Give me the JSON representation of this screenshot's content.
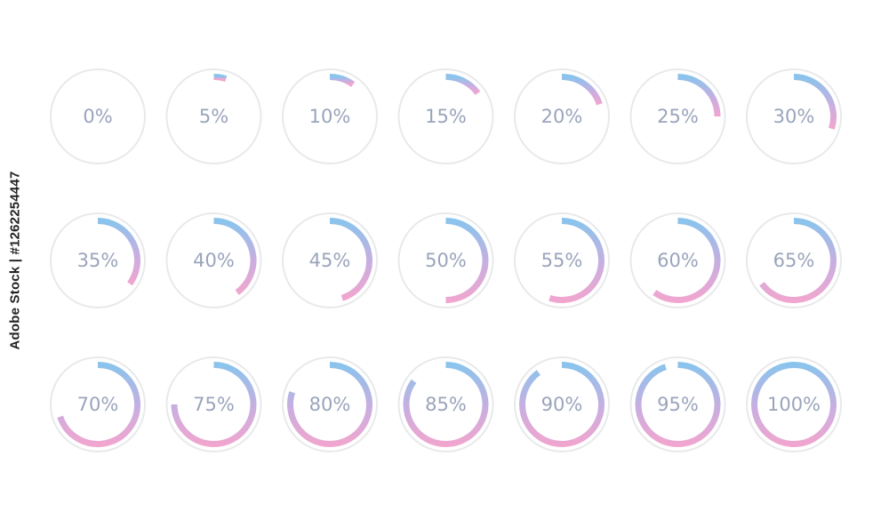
{
  "colors": {
    "track": "#e8e9ec",
    "gradient_start": "#8ac4ec",
    "gradient_mid": "#c9aee0",
    "gradient_end": "#f0a6cf",
    "label": "#9aa4bb"
  },
  "progress_rings": [
    {
      "label": "0%",
      "value": 0
    },
    {
      "label": "5%",
      "value": 5
    },
    {
      "label": "10%",
      "value": 10
    },
    {
      "label": "15%",
      "value": 15
    },
    {
      "label": "20%",
      "value": 20
    },
    {
      "label": "25%",
      "value": 25
    },
    {
      "label": "30%",
      "value": 30
    },
    {
      "label": "35%",
      "value": 35
    },
    {
      "label": "40%",
      "value": 40
    },
    {
      "label": "45%",
      "value": 45
    },
    {
      "label": "50%",
      "value": 50
    },
    {
      "label": "55%",
      "value": 55
    },
    {
      "label": "60%",
      "value": 60
    },
    {
      "label": "65%",
      "value": 65
    },
    {
      "label": "70%",
      "value": 70
    },
    {
      "label": "75%",
      "value": 75
    },
    {
      "label": "80%",
      "value": 80
    },
    {
      "label": "85%",
      "value": 85
    },
    {
      "label": "90%",
      "value": 90
    },
    {
      "label": "95%",
      "value": 95
    },
    {
      "label": "100%",
      "value": 100
    }
  ],
  "watermark": {
    "text": "Adobe Stock | #1262254447"
  }
}
